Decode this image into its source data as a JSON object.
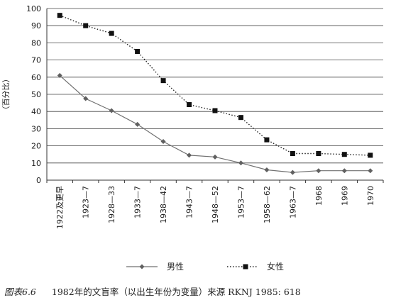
{
  "chart_data": {
    "type": "line",
    "ylabel": "（百分比）",
    "ylim": [
      0,
      100
    ],
    "yticks": [
      0,
      10,
      20,
      30,
      40,
      50,
      60,
      70,
      80,
      90,
      100
    ],
    "grid": "horizontal",
    "categories": [
      "1922及更早",
      "1923—7",
      "1928—33",
      "1933—7",
      "1938—42",
      "1943—7",
      "1948—52",
      "1953—7",
      "1958—62",
      "1963—7",
      "1968",
      "1969",
      "1970"
    ],
    "series": [
      {
        "name": "男性",
        "marker": "diamond",
        "line": "solid",
        "values": [
          61,
          47.5,
          40.5,
          32.5,
          22.5,
          14.5,
          13.5,
          10,
          6,
          4.5,
          5.5,
          5.5,
          5.5
        ]
      },
      {
        "name": "女性",
        "marker": "square",
        "line": "dotted",
        "values": [
          96,
          90,
          85.5,
          75,
          58,
          44,
          40.5,
          36.5,
          23.5,
          15.5,
          15.5,
          15,
          14.5
        ]
      }
    ],
    "legend_position": "bottom"
  },
  "caption": {
    "number": "图表6.6",
    "text": "1982年的文盲率（以出生年份为变量）来源 RKNJ 1985: 618"
  }
}
